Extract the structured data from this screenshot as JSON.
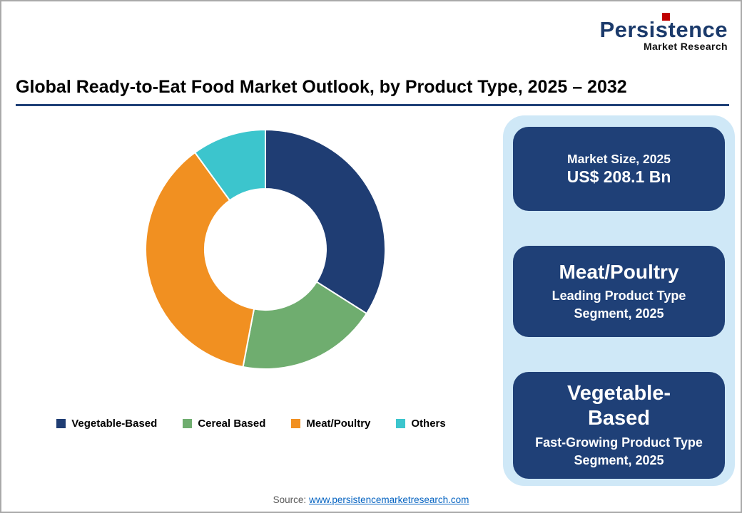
{
  "logo": {
    "name": "Persistence",
    "tagline": "Market Research",
    "accent_color": "#c00000",
    "name_color": "#1b3a6b"
  },
  "header": {
    "title": "Global Ready-to-Eat Food Market Outlook, by Product Type, 2025 – 2032",
    "underline_color": "#1f4077"
  },
  "chart_data": {
    "type": "pie",
    "subtype": "donut",
    "title": "Global Ready-to-Eat Food Market Outlook, by Product Type, 2025 – 2032",
    "categories": [
      "Vegetable-Based",
      "Cereal Based",
      "Meat/Poultry",
      "Others"
    ],
    "values": [
      34,
      19,
      37,
      10
    ],
    "values_unit": "percent (estimated from arc angles; no data labels shown)",
    "colors": [
      "#1f3d73",
      "#6fad6f",
      "#f19021",
      "#3cc5cd"
    ],
    "start_angle_deg": -90,
    "direction": "clockwise",
    "inner_radius_ratio": 0.5,
    "legend_position": "bottom",
    "slice_border_color": "#ffffff"
  },
  "sidebar": {
    "background_color": "#cfe8f7",
    "card_color": "#1f4077",
    "cards": [
      {
        "heading": "Market Size, 2025",
        "value": "US$ 208.1 Bn"
      },
      {
        "heading": "Meat/Poultry",
        "subtext": "Leading Product Type Segment, 2025"
      },
      {
        "heading": "Vegetable-Based",
        "subtext": "Fast-Growing Product Type Segment, 2025"
      }
    ]
  },
  "footer": {
    "source_label": "Source:",
    "source_link": "www.persistencemarketresearch.com",
    "link_color": "#0563c1"
  }
}
